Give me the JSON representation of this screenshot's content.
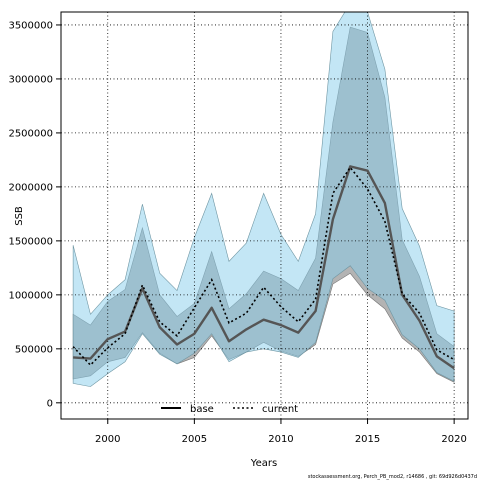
{
  "chart_data": {
    "type": "line",
    "xlabel": "Years",
    "ylabel": "SSB",
    "xlim": [
      1997.3,
      2020.8
    ],
    "ylim": [
      -150000,
      3620000
    ],
    "xticks": [
      "2000",
      "2005",
      "2010",
      "2015",
      "2020"
    ],
    "yticks": [
      "0",
      "500000",
      "1000000",
      "1500000",
      "2000000",
      "2500000",
      "3000000",
      "3500000"
    ],
    "grid": true,
    "legend_placement": "bottom",
    "colors": {
      "base": "#555555",
      "base_band": "#999999",
      "current": "#000000",
      "current_band": "#87CEEB",
      "outline": "#6f96a3"
    },
    "x": [
      1998,
      1999,
      2000,
      2001,
      2002,
      2003,
      2004,
      2005,
      2006,
      2007,
      2008,
      2009,
      2010,
      2011,
      2012,
      2013,
      2014,
      2015,
      2016,
      2017,
      2018,
      2019,
      2020
    ],
    "series": [
      {
        "name": "base",
        "style": "solid",
        "values": [
          420000,
          410000,
          590000,
          660000,
          1060000,
          700000,
          540000,
          640000,
          880000,
          570000,
          680000,
          770000,
          720000,
          650000,
          850000,
          1700000,
          2190000,
          2150000,
          1850000,
          1000000,
          760000,
          430000,
          320000
        ],
        "lower": [
          220000,
          250000,
          380000,
          420000,
          650000,
          460000,
          360000,
          420000,
          620000,
          400000,
          470000,
          560000,
          480000,
          430000,
          540000,
          1100000,
          1200000,
          1000000,
          870000,
          600000,
          470000,
          270000,
          190000
        ],
        "upper": [
          820000,
          720000,
          940000,
          1050000,
          1620000,
          1000000,
          800000,
          920000,
          1400000,
          870000,
          1010000,
          1220000,
          1150000,
          1040000,
          1340000,
          2600000,
          3480000,
          3430000,
          2830000,
          1510000,
          1170000,
          640000,
          520000
        ]
      },
      {
        "name": "current",
        "style": "dotted",
        "values": [
          520000,
          350000,
          510000,
          640000,
          1090000,
          750000,
          620000,
          880000,
          1140000,
          740000,
          830000,
          1070000,
          890000,
          750000,
          960000,
          1940000,
          2180000,
          1980000,
          1680000,
          1010000,
          830000,
          490000,
          400000
        ],
        "lower": [
          180000,
          150000,
          270000,
          380000,
          640000,
          450000,
          360000,
          460000,
          640000,
          380000,
          470000,
          500000,
          470000,
          420000,
          560000,
          1150000,
          1270000,
          1060000,
          950000,
          630000,
          500000,
          280000,
          200000
        ],
        "upper": [
          1460000,
          820000,
          1000000,
          1140000,
          1840000,
          1200000,
          1040000,
          1530000,
          1940000,
          1310000,
          1480000,
          1940000,
          1560000,
          1310000,
          1750000,
          3440000,
          3700000,
          3620000,
          3090000,
          1800000,
          1450000,
          900000,
          850000
        ]
      }
    ]
  },
  "footer": {
    "text": "stockassessment.org, Perch_PB_mod2, r14686 , git: 69d926d0437d"
  }
}
